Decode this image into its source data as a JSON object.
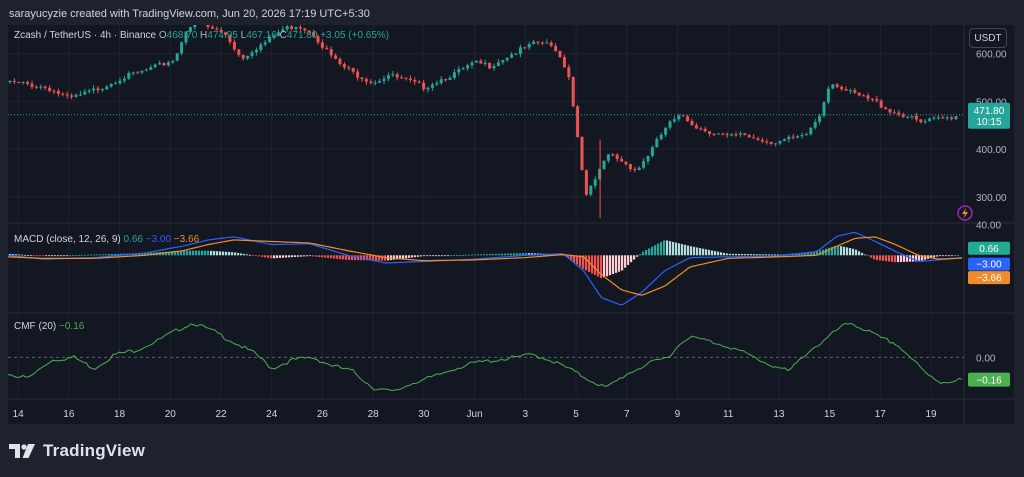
{
  "credit": "sarayucyzie created with TradingView.com, Jun 20, 2026 17:19 UTC+5:30",
  "symbol": {
    "name": "Zcash / TetherUS · 4h · Binance",
    "open_key": "O",
    "open": "468.70",
    "high_key": "H",
    "high": "474.95",
    "low_key": "L",
    "low": "467.16",
    "close_key": "C",
    "close": "471.80",
    "change": "+3.05 (+0.65%)"
  },
  "currency_button": "USDT",
  "price_tag": {
    "price": "471.80",
    "countdown": "10:15"
  },
  "macd_legend": {
    "label": "MACD (close, 12, 26, 9)",
    "hist": "0.66",
    "macd": "−3.00",
    "signal": "−3.66"
  },
  "cmf_legend": {
    "label": "CMF (20)",
    "value": "−0.16"
  },
  "logo_text": "TradingView",
  "colors": {
    "up": "#26a69a",
    "down": "#ef5350",
    "macd": "#2962ff",
    "signal": "#f28c28",
    "cmf": "#4caf50",
    "background": "#131722"
  },
  "icons": {
    "logo": "tradingview-logo-icon",
    "replay": "lightning-icon"
  },
  "chart_data": [
    {
      "type": "candlestick",
      "title": "Zcash / TetherUS · 4h · Binance",
      "y_ticks": [
        "600.00",
        "500.00",
        "400.00",
        "300.00"
      ],
      "y_tick_values": [
        600,
        500,
        400,
        300
      ],
      "ylim": [
        245,
        660
      ],
      "last_price": 471.8,
      "x_ticks": [
        "14",
        "16",
        "18",
        "20",
        "22",
        "24",
        "26",
        "28",
        "30",
        "Jun",
        "3",
        "5",
        "7",
        "9",
        "11",
        "13",
        "15",
        "17",
        "19"
      ],
      "x_tick_days": [
        14,
        16,
        18,
        20,
        22,
        24,
        26,
        28,
        30,
        32,
        34,
        36,
        38,
        40,
        42,
        44,
        46,
        48,
        50
      ],
      "x_range_days": [
        13.6,
        51.3
      ],
      "price_path": {
        "days": [
          13.6,
          14.5,
          15.2,
          16.0,
          16.6,
          17.3,
          18.0,
          18.8,
          19.6,
          20.2,
          20.6,
          21.0,
          21.5,
          22.2,
          22.8,
          23.3,
          23.8,
          24.4,
          25.0,
          25.6,
          26.1,
          26.6,
          27.2,
          28.0,
          28.6,
          29.2,
          30.0,
          30.6,
          31.3,
          32.0,
          32.6,
          33.3,
          34.0,
          34.6,
          35.2,
          35.7,
          36.0,
          36.4,
          36.8,
          37.3,
          37.8,
          38.4,
          39.0,
          39.6,
          40.2,
          40.8,
          41.4,
          42.0,
          42.6,
          43.2,
          43.8,
          44.4,
          45.0,
          45.6,
          46.0,
          46.3,
          46.7,
          47.2,
          47.8,
          48.4,
          49.0,
          49.6,
          50.2,
          50.8,
          51.2
        ],
        "close": [
          540,
          535,
          528,
          505,
          515,
          530,
          548,
          560,
          575,
          590,
          650,
          665,
          655,
          640,
          590,
          610,
          625,
          650,
          660,
          645,
          610,
          580,
          560,
          540,
          555,
          545,
          530,
          545,
          560,
          580,
          575,
          595,
          612,
          625,
          610,
          560,
          450,
          300,
          340,
          390,
          375,
          355,
          400,
          450,
          470,
          445,
          435,
          425,
          430,
          420,
          415,
          420,
          425,
          470,
          540,
          535,
          520,
          510,
          500,
          480,
          470,
          455,
          462,
          468,
          471.8
        ]
      }
    },
    {
      "type": "line",
      "title": "MACD (close, 12, 26, 9)",
      "y_ticks": [
        "40.00"
      ],
      "ylim": [
        -75,
        42
      ],
      "last_values": {
        "histogram": 0.66,
        "macd": -3.0,
        "signal": -3.66
      },
      "series": [
        {
          "name": "MACD",
          "days": [
            13.6,
            15.0,
            17.0,
            19.0,
            20.5,
            21.5,
            22.5,
            24.0,
            25.5,
            27.0,
            28.5,
            30.0,
            32.0,
            34.0,
            35.5,
            36.3,
            37.0,
            37.8,
            38.6,
            39.5,
            40.5,
            42.0,
            44.0,
            45.5,
            46.3,
            47.0,
            47.8,
            48.6,
            49.5,
            50.3,
            51.2
          ],
          "values": [
            0,
            -5,
            -3,
            3,
            12,
            20,
            24,
            14,
            15,
            0,
            -10,
            -8,
            -5,
            0,
            2,
            -20,
            -55,
            -65,
            -48,
            -20,
            -3,
            -2,
            -1,
            5,
            25,
            30,
            18,
            5,
            -8,
            -6,
            -3
          ]
        },
        {
          "name": "Signal",
          "days": [
            13.6,
            15.0,
            17.0,
            19.0,
            20.5,
            21.5,
            22.5,
            24.0,
            25.5,
            27.0,
            28.5,
            30.0,
            32.0,
            34.0,
            35.5,
            36.3,
            37.0,
            37.8,
            38.6,
            39.5,
            40.5,
            42.0,
            44.0,
            45.5,
            46.3,
            47.0,
            47.8,
            48.6,
            49.5,
            50.3,
            51.2
          ],
          "values": [
            -2,
            -4,
            -4,
            0,
            6,
            14,
            20,
            18,
            16,
            6,
            -3,
            -7,
            -6,
            -3,
            1,
            -2,
            -25,
            -45,
            -52,
            -40,
            -15,
            -4,
            -2,
            0,
            12,
            22,
            24,
            14,
            0,
            -5,
            -3.66
          ]
        }
      ],
      "histogram": {
        "days": [
          13.6,
          15.0,
          17.0,
          19.0,
          20.5,
          21.5,
          22.5,
          24.0,
          25.5,
          27.0,
          28.5,
          30.0,
          32.0,
          34.0,
          35.5,
          36.3,
          37.0,
          37.8,
          38.6,
          39.5,
          40.5,
          42.0,
          44.0,
          45.5,
          46.3,
          47.0,
          47.8,
          48.6,
          49.5,
          50.3,
          51.2
        ],
        "values": [
          2,
          -1,
          1,
          3,
          6,
          6,
          4,
          -4,
          -1,
          -6,
          -7,
          -1,
          1,
          3,
          1,
          -18,
          -30,
          -20,
          4,
          20,
          12,
          2,
          1,
          5,
          13,
          8,
          -6,
          -9,
          -8,
          -1,
          0.66
        ]
      }
    },
    {
      "type": "line",
      "title": "CMF (20)",
      "y_ticks": [
        "0.00"
      ],
      "ylim": [
        -0.3,
        0.32
      ],
      "last_value": -0.16,
      "series": [
        {
          "name": "CMF",
          "days": [
            13.6,
            14.4,
            15.3,
            16.2,
            17.0,
            17.8,
            18.6,
            19.5,
            20.3,
            20.9,
            21.8,
            22.6,
            23.4,
            24.0,
            24.8,
            25.6,
            26.4,
            27.2,
            28.0,
            28.8,
            29.6,
            30.4,
            31.2,
            32.0,
            32.8,
            33.6,
            34.3,
            35.0,
            35.7,
            36.4,
            37.2,
            38.0,
            38.8,
            39.6,
            40.4,
            41.2,
            42.0,
            42.8,
            43.6,
            44.4,
            45.2,
            45.8,
            46.3,
            46.8,
            47.4,
            48.0,
            48.6,
            49.2,
            49.8,
            50.4,
            51.2
          ],
          "values": [
            -0.12,
            -0.15,
            -0.02,
            0.0,
            -0.08,
            0.02,
            0.05,
            0.12,
            0.2,
            0.25,
            0.18,
            0.1,
            0.02,
            -0.08,
            -0.02,
            0.0,
            -0.06,
            -0.1,
            -0.22,
            -0.25,
            -0.18,
            -0.14,
            -0.08,
            -0.04,
            -0.02,
            0.0,
            0.02,
            -0.02,
            -0.08,
            -0.15,
            -0.22,
            -0.12,
            -0.05,
            0.0,
            0.15,
            0.12,
            0.08,
            0.02,
            -0.05,
            -0.1,
            0.05,
            0.12,
            0.2,
            0.25,
            0.2,
            0.14,
            0.1,
            0.0,
            -0.12,
            -0.18,
            -0.16
          ]
        }
      ]
    }
  ]
}
